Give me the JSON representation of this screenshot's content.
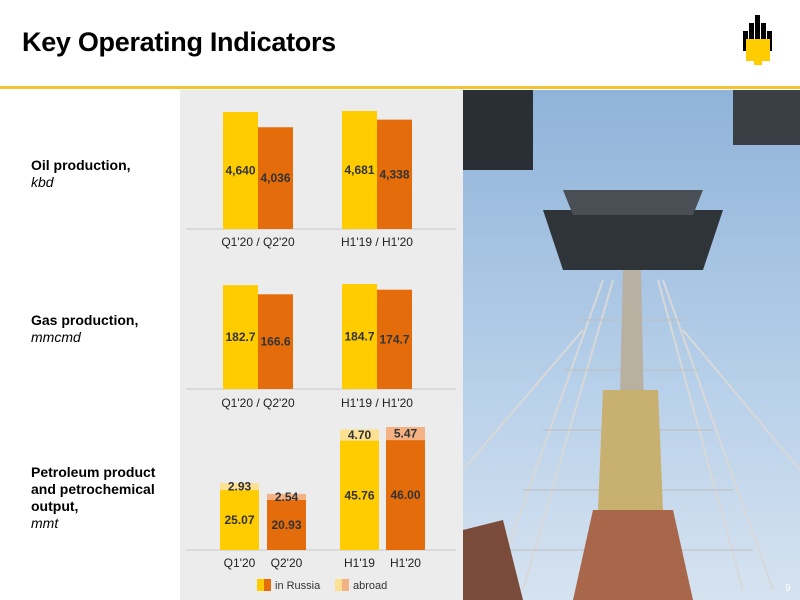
{
  "title": "Key Operating Indicators",
  "page_number": "9",
  "colors": {
    "accent": "#f2c431",
    "in_russia": "#ffcc00",
    "abroad": "#fbe191",
    "dark_orange": "#e46c0a",
    "dark_orange_abroad": "#f4b183",
    "panel_bg": "#ececec"
  },
  "rows": [
    {
      "label": "Oil production,",
      "unit": "kbd"
    },
    {
      "label": "Gas production,",
      "unit": "mmcmd"
    },
    {
      "label": "Petroleum product\nand petrochemical\noutput,",
      "unit": "mmt"
    }
  ],
  "legend": {
    "in_russia": "in Russia",
    "abroad": "abroad"
  },
  "chart_data": [
    {
      "type": "bar",
      "title": "Oil production",
      "categories": [
        "Q1'20 / Q2'20",
        "H1'19 / H1'20"
      ],
      "series": [
        {
          "values": [
            4640,
            4681
          ],
          "labels": [
            "4,640",
            "4,681"
          ]
        },
        {
          "values": [
            4036,
            4338
          ],
          "labels": [
            "4,036",
            "4,338"
          ]
        }
      ]
    },
    {
      "type": "bar",
      "title": "Gas production",
      "categories": [
        "Q1'20 / Q2'20",
        "H1'19 / H1'20"
      ],
      "series": [
        {
          "values": [
            182.7,
            184.7
          ],
          "labels": [
            "182.7",
            "184.7"
          ]
        },
        {
          "values": [
            166.6,
            174.7
          ],
          "labels": [
            "166.6",
            "174.7"
          ]
        }
      ]
    },
    {
      "type": "bar",
      "title": "Petroleum product and petrochemical output",
      "stacked": true,
      "categories": [
        "Q1'20",
        "Q2'20",
        "H1'19",
        "H1'20"
      ],
      "series": [
        {
          "name": "in Russia",
          "values": [
            25.07,
            20.93,
            45.76,
            46.0
          ],
          "labels": [
            "25.07",
            "20.93",
            "45.76",
            "46.00"
          ]
        },
        {
          "name": "abroad",
          "values": [
            2.93,
            2.54,
            4.7,
            5.47
          ],
          "labels": [
            "2.93",
            "2.54",
            "4.70",
            "5.47"
          ]
        }
      ]
    }
  ]
}
